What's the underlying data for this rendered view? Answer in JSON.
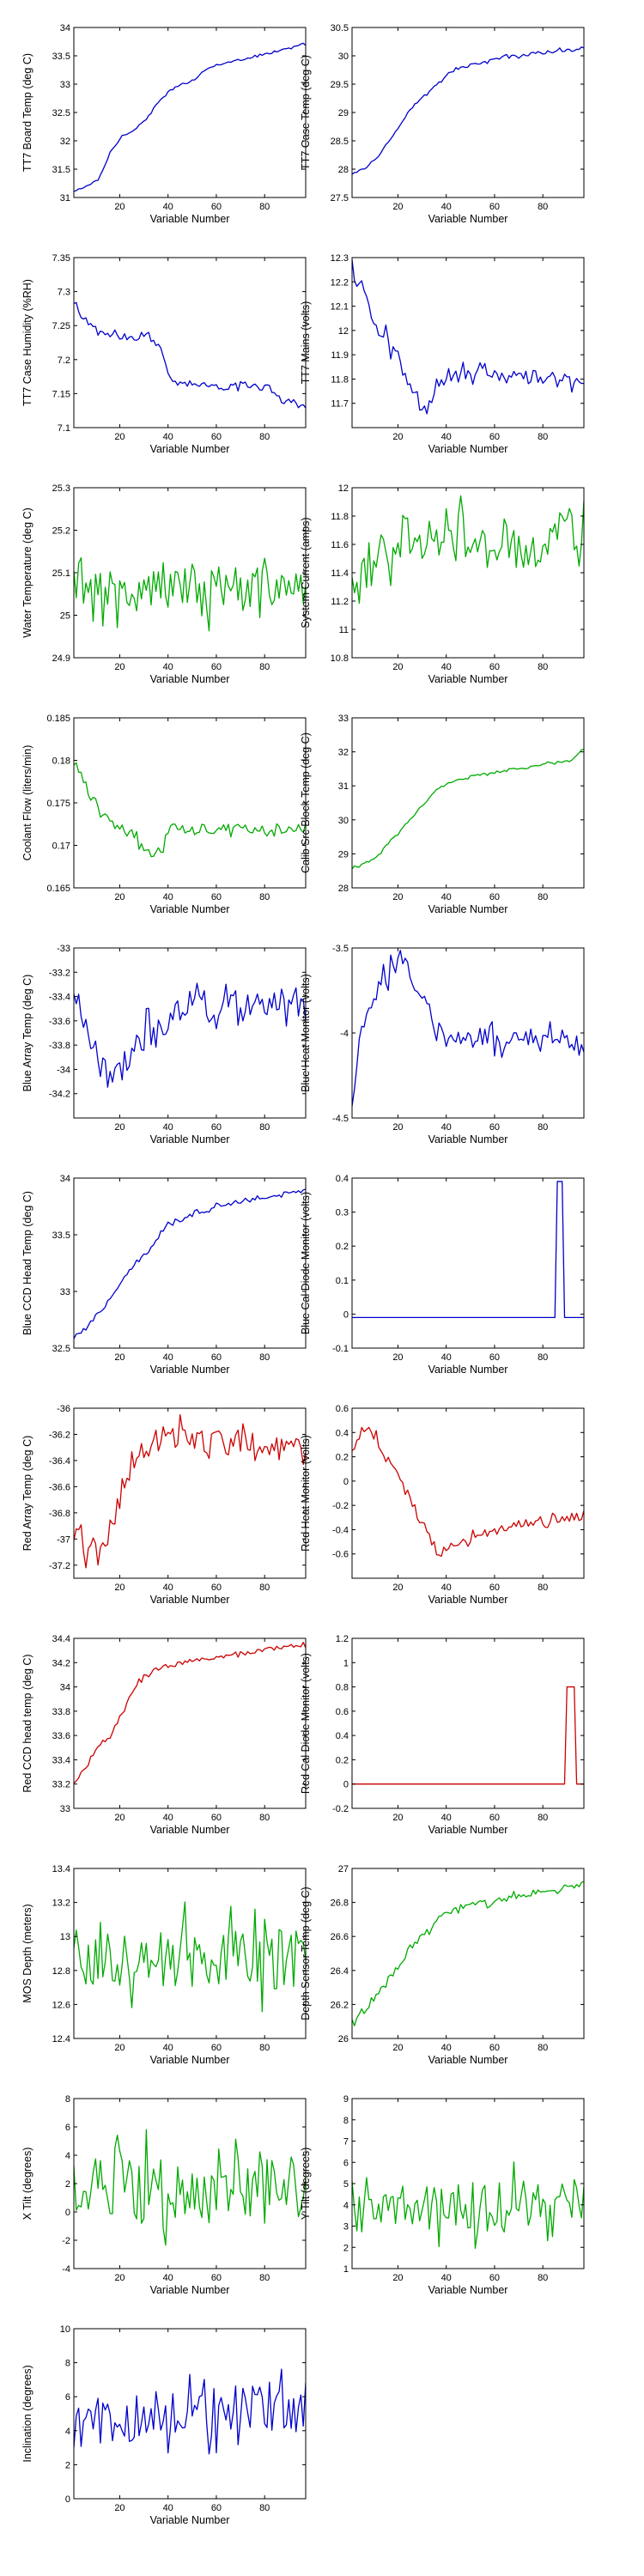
{
  "chart_data": [
    {
      "type": "line",
      "ylabel": "TT7 Board Temp (deg C)",
      "xlabel": "Variable Number",
      "ylim": [
        31,
        34
      ],
      "yticks": [
        "34",
        "33.5",
        "33",
        "32.5",
        "32",
        "31.5",
        "31"
      ],
      "xticks": [
        "20",
        "40",
        "60",
        "80"
      ],
      "color": "#0000cc",
      "n": 97,
      "noise": 0.02,
      "values": [
        31.1,
        31.2,
        31.3,
        31.8,
        32.1,
        32.2,
        32.4,
        32.7,
        32.9,
        33.0,
        33.1,
        33.3,
        33.35,
        33.4,
        33.45,
        33.5,
        33.55,
        33.6,
        33.65,
        33.7
      ]
    },
    {
      "type": "line",
      "ylabel": "TT7 Case Temp (deg C)",
      "xlabel": "Variable Number",
      "ylim": [
        27.5,
        30.5
      ],
      "yticks": [
        "30.5",
        "30",
        "29.5",
        "29",
        "28.5",
        "28",
        "27.5"
      ],
      "xticks": [
        "20",
        "40",
        "60",
        "80"
      ],
      "color": "#0000cc",
      "n": 97,
      "noise": 0.025,
      "values": [
        27.9,
        28.0,
        28.2,
        28.5,
        28.8,
        29.1,
        29.3,
        29.5,
        29.7,
        29.8,
        29.85,
        29.9,
        29.95,
        30.0,
        30.0,
        30.05,
        30.05,
        30.1,
        30.1,
        30.15
      ]
    },
    {
      "type": "line",
      "ylabel": "TT7 Case Humidity (%RH)",
      "xlabel": "Variable Number",
      "ylim": [
        7.1,
        7.35
      ],
      "yticks": [
        "7.35",
        "7.3",
        "7.25",
        "7.2",
        "7.15",
        "7.1"
      ],
      "xticks": [
        "20",
        "40",
        "60",
        "80"
      ],
      "color": "#0000cc",
      "n": 97,
      "noise": 0.005,
      "values": [
        7.28,
        7.26,
        7.24,
        7.235,
        7.235,
        7.23,
        7.24,
        7.22,
        7.165,
        7.165,
        7.165,
        7.165,
        7.16,
        7.16,
        7.165,
        7.16,
        7.16,
        7.14,
        7.14,
        7.13
      ]
    },
    {
      "type": "line",
      "ylabel": "TT7 Mains  (volts)",
      "xlabel": "Variable Number",
      "ylim": [
        11.6,
        12.3
      ],
      "yticks": [
        "12.3",
        "12.2",
        "12.1",
        "12",
        "11.9",
        "11.8",
        "11.7"
      ],
      "xticks": [
        "20",
        "40",
        "60",
        "80"
      ],
      "color": "#0000cc",
      "n": 97,
      "noise": 0.035,
      "values": [
        12.25,
        12.15,
        12.0,
        11.95,
        11.85,
        11.75,
        11.65,
        11.8,
        11.82,
        11.84,
        11.8,
        11.85,
        11.82,
        11.8,
        11.8,
        11.82,
        11.8,
        11.8,
        11.78,
        11.78
      ]
    },
    {
      "type": "line",
      "ylabel": "Water Temperature (deg C)",
      "xlabel": "Variable Number",
      "ylim": [
        24.9,
        25.3
      ],
      "yticks": [
        "25.3",
        "25.2",
        "25.1",
        "25",
        "24.9"
      ],
      "xticks": [
        "20",
        "40",
        "60",
        "80"
      ],
      "color": "#00aa00",
      "n": 97,
      "noise": 0.055,
      "values": [
        25.06,
        25.05,
        25.05,
        25.06,
        25.07,
        25.06,
        25.05,
        25.08,
        25.06,
        25.07,
        25.07,
        25.05,
        25.08,
        25.06,
        25.06,
        25.07,
        25.05,
        25.07,
        25.06,
        25.05
      ]
    },
    {
      "type": "line",
      "ylabel": "System Current (amps)",
      "xlabel": "Variable Number",
      "ylim": [
        10.8,
        12
      ],
      "yticks": [
        "12",
        "11.8",
        "11.6",
        "11.4",
        "11.2",
        "11",
        "10.8"
      ],
      "xticks": [
        "20",
        "40",
        "60",
        "80"
      ],
      "color": "#00aa00",
      "n": 97,
      "noise": 0.18,
      "values": [
        11.2,
        11.4,
        11.55,
        11.6,
        11.65,
        11.65,
        11.65,
        11.6,
        11.6,
        11.65,
        11.6,
        11.6,
        11.6,
        11.6,
        11.6,
        11.6,
        11.6,
        11.65,
        11.7,
        11.7
      ]
    },
    {
      "type": "line",
      "ylabel": "Coolant Flow (liters/min)",
      "xlabel": "Variable Number",
      "ylim": [
        0.165,
        0.185
      ],
      "yticks": [
        "0.185",
        "0.18",
        "0.175",
        "0.17",
        "0.165"
      ],
      "xticks": [
        "20",
        "40",
        "60",
        "80"
      ],
      "color": "#00aa00",
      "n": 97,
      "noise": 0.0006,
      "values": [
        0.18,
        0.177,
        0.174,
        0.173,
        0.172,
        0.171,
        0.169,
        0.169,
        0.172,
        0.172,
        0.172,
        0.172,
        0.172,
        0.172,
        0.172,
        0.172,
        0.172,
        0.172,
        0.172,
        0.172
      ]
    },
    {
      "type": "line",
      "ylabel": "Calib Src Block Temp (deg C)",
      "xlabel": "Variable Number",
      "ylim": [
        28,
        33
      ],
      "yticks": [
        "33",
        "32",
        "31",
        "30",
        "29",
        "28"
      ],
      "xticks": [
        "20",
        "40",
        "60",
        "80"
      ],
      "color": "#00aa00",
      "n": 97,
      "noise": 0.03,
      "values": [
        28.6,
        28.7,
        28.9,
        29.3,
        29.7,
        30.1,
        30.5,
        30.9,
        31.1,
        31.2,
        31.3,
        31.35,
        31.4,
        31.5,
        31.5,
        31.6,
        31.65,
        31.7,
        31.75,
        32.1
      ]
    },
    {
      "type": "line",
      "ylabel": "Blue Array Temp (deg C)",
      "xlabel": "Variable Number",
      "ylim": [
        -34.4,
        -33
      ],
      "yticks": [
        "-33",
        "-33.2",
        "-33.4",
        "-33.6",
        "-33.8",
        "-34",
        "-34.2"
      ],
      "xticks": [
        "20",
        "40",
        "60",
        "80"
      ],
      "color": "#0000cc",
      "n": 97,
      "noise": 0.12,
      "values": [
        -33.3,
        -33.7,
        -33.9,
        -34.1,
        -34.0,
        -33.8,
        -33.7,
        -33.7,
        -33.6,
        -33.5,
        -33.4,
        -33.5,
        -33.5,
        -33.4,
        -33.5,
        -33.4,
        -33.5,
        -33.4,
        -33.5,
        -33.5
      ]
    },
    {
      "type": "line",
      "ylabel": "Blue Heat Monitor (volts)",
      "xlabel": "Variable Number",
      "ylim": [
        -4.5,
        -3.5
      ],
      "yticks": [
        "-3.5",
        "-4",
        "-4.5"
      ],
      "xticks": [
        "20",
        "40",
        "60",
        "80"
      ],
      "color": "#0000cc",
      "n": 97,
      "noise": 0.06,
      "values": [
        -4.4,
        -3.9,
        -3.75,
        -3.65,
        -3.55,
        -3.7,
        -3.8,
        -4.0,
        -4.05,
        -4.0,
        -4.05,
        -4.0,
        -4.05,
        -4.05,
        -4.0,
        -4.05,
        -4.05,
        -4.0,
        -4.05,
        -4.1
      ]
    },
    {
      "type": "line",
      "ylabel": "Blue CCD Head Temp (deg C)",
      "xlabel": "Variable Number",
      "ylim": [
        32.5,
        34
      ],
      "yticks": [
        "34",
        "33.5",
        "33",
        "32.5"
      ],
      "xticks": [
        "20",
        "40",
        "60",
        "80"
      ],
      "color": "#0000cc",
      "n": 97,
      "noise": 0.025,
      "values": [
        32.6,
        32.7,
        32.8,
        32.95,
        33.1,
        33.25,
        33.35,
        33.5,
        33.6,
        33.65,
        33.7,
        33.72,
        33.75,
        33.78,
        33.8,
        33.82,
        33.83,
        33.85,
        33.87,
        33.9
      ]
    },
    {
      "type": "line",
      "ylabel": "Blue Cal Diode Monitor (volts)",
      "xlabel": "Variable Number",
      "ylim": [
        -0.1,
        0.4
      ],
      "yticks": [
        "0.4",
        "0.3",
        "0.2",
        "0.1",
        "0",
        "-0.1"
      ],
      "xticks": [
        "20",
        "40",
        "60",
        "80"
      ],
      "color": "#0000cc",
      "n": 97,
      "noise": 0,
      "values": [
        -0.01,
        -0.01,
        -0.01,
        -0.01,
        -0.01,
        -0.01,
        -0.01,
        -0.01,
        -0.01,
        -0.01,
        -0.01,
        -0.01,
        -0.01,
        -0.01,
        -0.01,
        -0.01,
        -0.01,
        -0.01,
        -0.01,
        -0.01
      ],
      "spike": [
        86,
        88,
        0.39
      ]
    },
    {
      "type": "line",
      "ylabel": "Red Array Temp (deg C)",
      "xlabel": "Variable Number",
      "ylim": [
        -37.3,
        -36
      ],
      "yticks": [
        "-36",
        "-36.2",
        "-36.4",
        "-36.6",
        "-36.8",
        "-37",
        "-37.2"
      ],
      "xticks": [
        "20",
        "40",
        "60",
        "80"
      ],
      "color": "#cc0000",
      "n": 97,
      "noise": 0.1,
      "values": [
        -37.0,
        -37.1,
        -37.1,
        -36.9,
        -36.6,
        -36.4,
        -36.3,
        -36.2,
        -36.2,
        -36.2,
        -36.25,
        -36.3,
        -36.2,
        -36.3,
        -36.2,
        -36.3,
        -36.3,
        -36.3,
        -36.3,
        -36.4
      ]
    },
    {
      "type": "line",
      "ylabel": "Red Heat Monitor (volts)",
      "xlabel": "Variable Number",
      "ylim": [
        -0.8,
        0.6
      ],
      "yticks": [
        "0.6",
        "0.4",
        "0.2",
        "0",
        "-0.2",
        "-0.4",
        "-0.6"
      ],
      "xticks": [
        "20",
        "40",
        "60",
        "80"
      ],
      "color": "#cc0000",
      "n": 97,
      "noise": 0.04,
      "values": [
        0.25,
        0.45,
        0.35,
        0.15,
        0.0,
        -0.2,
        -0.4,
        -0.6,
        -0.55,
        -0.5,
        -0.45,
        -0.42,
        -0.4,
        -0.38,
        -0.35,
        -0.33,
        -0.32,
        -0.3,
        -0.3,
        -0.28
      ]
    },
    {
      "type": "line",
      "ylabel": "Red CCD head temp (deg C)",
      "xlabel": "Variable Number",
      "ylim": [
        33,
        34.4
      ],
      "yticks": [
        "34.4",
        "34.2",
        "34",
        "33.8",
        "33.6",
        "33.4",
        "33.2",
        "33"
      ],
      "xticks": [
        "20",
        "40",
        "60",
        "80"
      ],
      "color": "#cc0000",
      "n": 97,
      "noise": 0.02,
      "values": [
        33.2,
        33.35,
        33.5,
        33.6,
        33.8,
        34.0,
        34.1,
        34.15,
        34.18,
        34.2,
        34.22,
        34.24,
        34.25,
        34.27,
        34.28,
        34.3,
        34.31,
        34.32,
        34.34,
        34.35
      ]
    },
    {
      "type": "line",
      "ylabel": "Red Cal Diode Monitor (volts)",
      "xlabel": "Variable Number",
      "ylim": [
        -0.2,
        1.2
      ],
      "yticks": [
        "1.2",
        "1",
        "0.8",
        "0.6",
        "0.4",
        "0.2",
        "0",
        "-0.2"
      ],
      "xticks": [
        "20",
        "40",
        "60",
        "80"
      ],
      "color": "#cc0000",
      "n": 97,
      "noise": 0,
      "values": [
        0,
        0,
        0,
        0,
        0,
        0,
        0,
        0,
        0,
        0,
        0,
        0,
        0,
        0,
        0,
        0,
        0,
        0,
        0,
        0
      ],
      "spike": [
        90,
        93,
        0.8
      ]
    },
    {
      "type": "line",
      "ylabel": "MOS Depth  (meters)",
      "xlabel": "Variable Number",
      "ylim": [
        12.4,
        13.4
      ],
      "yticks": [
        "13.4",
        "13.2",
        "13",
        "12.8",
        "12.6",
        "12.4"
      ],
      "xticks": [
        "20",
        "40",
        "60",
        "80"
      ],
      "color": "#00aa00",
      "n": 97,
      "noise": 0.18,
      "values": [
        12.85,
        12.8,
        12.9,
        12.85,
        12.8,
        12.9,
        12.85,
        12.9,
        12.85,
        12.9,
        12.85,
        12.9,
        12.85,
        12.9,
        12.85,
        12.9,
        12.85,
        12.9,
        12.85,
        12.9
      ]
    },
    {
      "type": "line",
      "ylabel": "Depth Sensor Temp (deg C)",
      "xlabel": "Variable Number",
      "ylim": [
        26,
        27
      ],
      "yticks": [
        "27",
        "26.8",
        "26.6",
        "26.4",
        "26.2",
        "26"
      ],
      "xticks": [
        "20",
        "40",
        "60",
        "80"
      ],
      "color": "#00aa00",
      "n": 97,
      "noise": 0.02,
      "values": [
        26.1,
        26.15,
        26.25,
        26.35,
        26.45,
        26.55,
        26.62,
        26.7,
        26.75,
        26.78,
        26.8,
        26.8,
        26.82,
        26.83,
        26.85,
        26.86,
        26.87,
        26.88,
        26.9,
        26.92
      ]
    },
    {
      "type": "line",
      "ylabel": "X Tilt  (degrees)",
      "xlabel": "Variable Number",
      "ylim": [
        -4,
        8
      ],
      "yticks": [
        "8",
        "6",
        "4",
        "2",
        "0",
        "-2",
        "-4"
      ],
      "xticks": [
        "20",
        "40",
        "60",
        "80"
      ],
      "color": "#00aa00",
      "n": 97,
      "noise": 2.4,
      "values": [
        1.5,
        1.5,
        1.5,
        1.5,
        1.5,
        1.5,
        1.5,
        1.5,
        1.5,
        1.5,
        1.5,
        1.5,
        1.5,
        1.5,
        1.5,
        1.5,
        1.5,
        1.5,
        1.5,
        1.5
      ]
    },
    {
      "type": "line",
      "ylabel": "Y Tilt  (degrees)",
      "xlabel": "Variable Number",
      "ylim": [
        1,
        9
      ],
      "yticks": [
        "9",
        "8",
        "7",
        "6",
        "5",
        "4",
        "3",
        "2",
        "1"
      ],
      "xticks": [
        "20",
        "40",
        "60",
        "80"
      ],
      "color": "#00aa00",
      "n": 97,
      "noise": 1.3,
      "values": [
        4,
        4,
        4,
        4,
        4,
        4,
        4,
        4,
        4,
        4,
        4,
        4,
        4,
        4,
        4,
        4,
        4,
        4,
        4,
        4
      ]
    },
    {
      "type": "line",
      "ylabel": "Inclination  (degrees)",
      "xlabel": "Variable Number",
      "ylim": [
        0,
        10
      ],
      "yticks": [
        "10",
        "8",
        "6",
        "4",
        "2",
        "0"
      ],
      "xticks": [
        "20",
        "40",
        "60",
        "80"
      ],
      "color": "#0000cc",
      "n": 97,
      "noise": 1.5,
      "values": [
        4.5,
        4.5,
        4.5,
        4.6,
        4.6,
        4.7,
        4.8,
        4.9,
        5.0,
        5.0,
        5.1,
        5.2,
        5.2,
        5.3,
        5.3,
        5.3,
        5.4,
        5.4,
        5.4,
        5.4
      ]
    }
  ]
}
